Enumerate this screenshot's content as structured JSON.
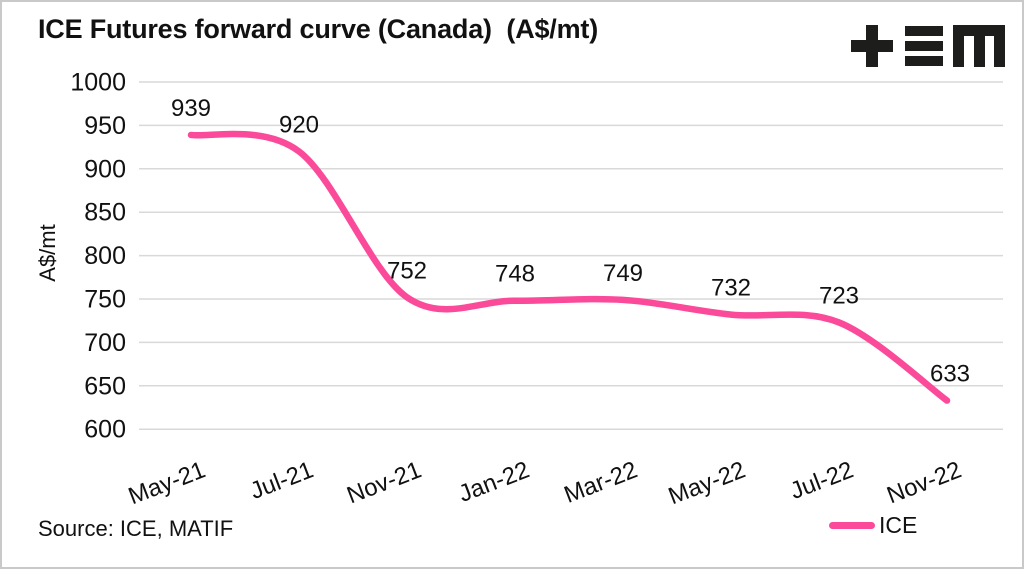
{
  "header": {
    "title": "ICE Futures forward curve (Canada)  (A$/mt)"
  },
  "chart_data": {
    "type": "line",
    "title": "ICE Futures forward curve (Canada) (A$/mt)",
    "y_axis_label": "A$/mt",
    "categories": [
      "May-21",
      "Jul-21",
      "Nov-21",
      "Jan-22",
      "Mar-22",
      "May-22",
      "Jul-22",
      "Nov-22"
    ],
    "series": [
      {
        "name": "ICE",
        "color": "#FA4A99",
        "values": [
          939,
          920,
          752,
          748,
          749,
          732,
          723,
          633
        ]
      }
    ],
    "data_labels": [
      939,
      920,
      752,
      748,
      749,
      732,
      723,
      633
    ],
    "y_ticks": [
      1000,
      950,
      900,
      850,
      800,
      750,
      700,
      650,
      600
    ],
    "ylim": [
      600,
      1000
    ],
    "grid": "horizontal",
    "line_style": "smooth",
    "legend_position": "bottom-right"
  },
  "footer": {
    "source": "Source: ICE, MATIF"
  },
  "legend": {
    "label": "ICE",
    "swatch_color": "#FA4A99"
  },
  "colors": {
    "accent_pink": "#FA4A99",
    "gridline": "#d9d9d9",
    "text": "#111111",
    "logo_black": "#1d1d1b",
    "frame_border": "#c9c9c9"
  }
}
